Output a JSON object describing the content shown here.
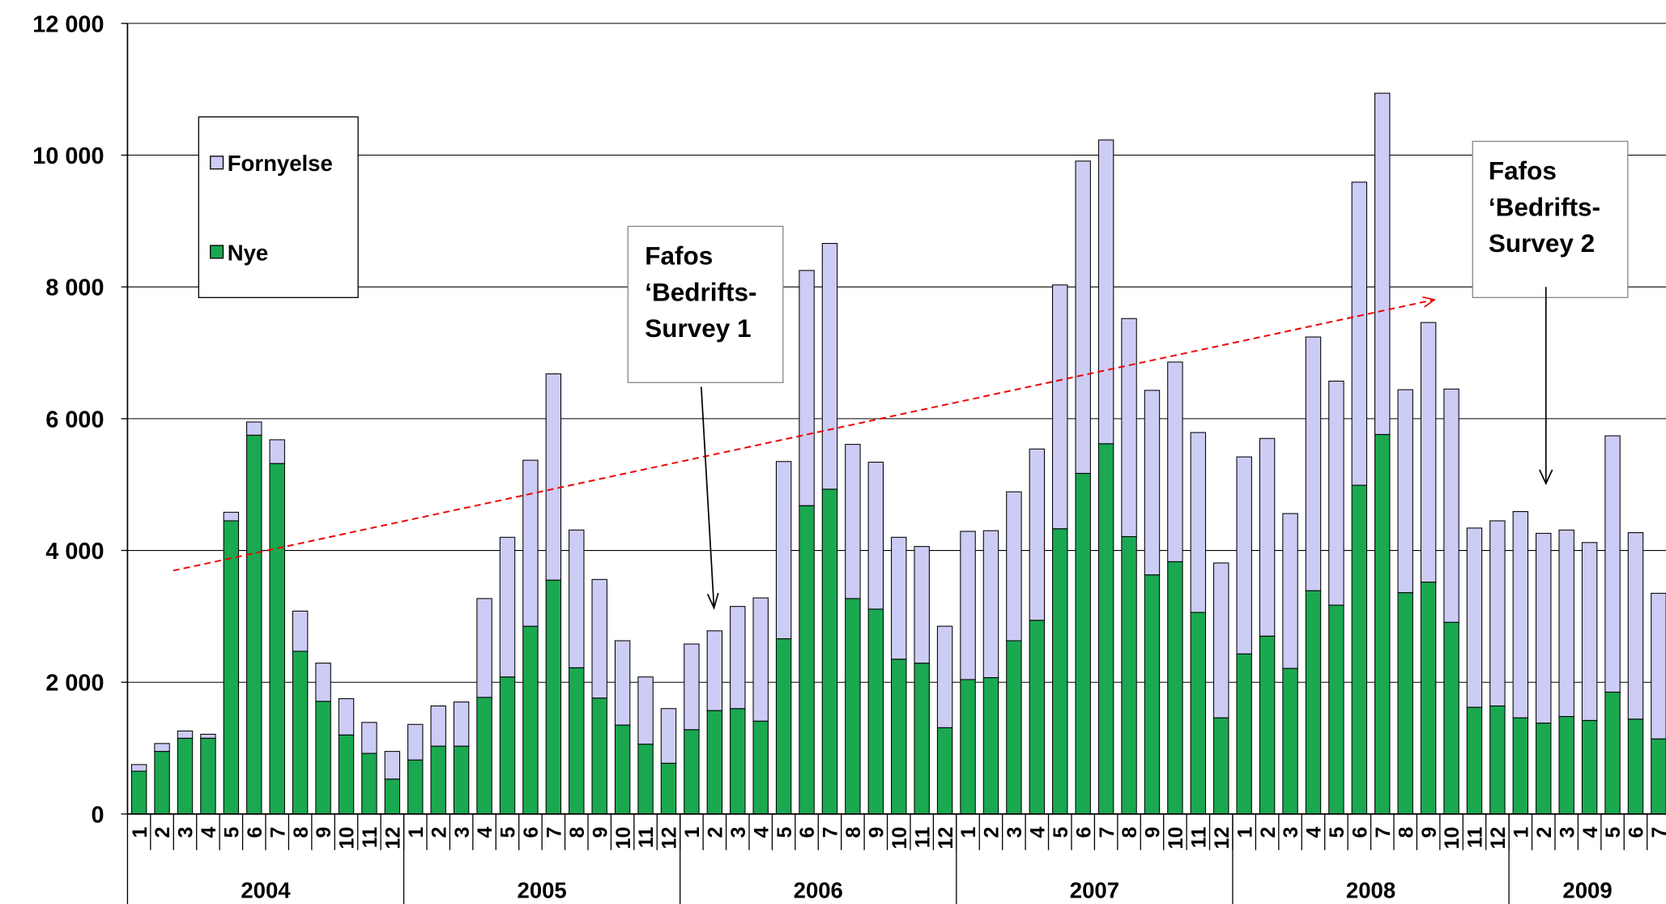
{
  "chart_data": {
    "type": "stacked_bar",
    "categories": [
      "1",
      "2",
      "3",
      "4",
      "5",
      "6",
      "7",
      "8",
      "9",
      "10",
      "11",
      "12",
      "1",
      "2",
      "3",
      "4",
      "5",
      "6",
      "7",
      "8",
      "9",
      "10",
      "11",
      "12",
      "1",
      "2",
      "3",
      "4",
      "5",
      "6",
      "7",
      "8",
      "9",
      "10",
      "11",
      "12",
      "1",
      "2",
      "3",
      "4",
      "5",
      "6",
      "7",
      "8",
      "9",
      "10",
      "11",
      "12",
      "1",
      "2",
      "3",
      "4",
      "5",
      "6",
      "7",
      "8",
      "9",
      "10",
      "11",
      "12",
      "1",
      "2",
      "3",
      "4",
      "5",
      "6",
      "7"
    ],
    "groups": [
      "2004",
      "2005",
      "2006",
      "2007",
      "2008",
      "2009"
    ],
    "series": [
      {
        "name": "Nye",
        "color": "#1aa851",
        "values": [
          650,
          950,
          1150,
          1150,
          4450,
          5750,
          5320,
          2470,
          1710,
          1200,
          920,
          530,
          820,
          1030,
          1030,
          1770,
          2080,
          2850,
          3550,
          2220,
          1760,
          1350,
          1060,
          770,
          1280,
          1570,
          1600,
          1410,
          2660,
          4680,
          4930,
          3270,
          3110,
          2350,
          2290,
          1310,
          2040,
          2070,
          2630,
          2940,
          4330,
          5170,
          5620,
          4210,
          3630,
          3830,
          3060,
          1460,
          2430,
          2700,
          2210,
          3390,
          3170,
          4990,
          5760,
          3360,
          3520,
          2910,
          1620,
          1640,
          1460,
          1380,
          1480,
          1420,
          1850,
          1440,
          1140
        ]
      },
      {
        "name": "Fornyelse",
        "color": "#ccccf5",
        "values": [
          100,
          120,
          110,
          60,
          130,
          200,
          360,
          610,
          580,
          550,
          470,
          420,
          540,
          610,
          670,
          1500,
          2120,
          2520,
          3130,
          2090,
          1800,
          1280,
          1020,
          830,
          1300,
          1210,
          1550,
          1870,
          2690,
          3570,
          3730,
          2340,
          2230,
          1850,
          1770,
          1540,
          2250,
          2230,
          2260,
          2600,
          3700,
          4740,
          4610,
          3310,
          2800,
          3030,
          2730,
          2350,
          2990,
          3000,
          2350,
          3850,
          3400,
          4600,
          5180,
          3080,
          3940,
          3540,
          2720,
          2810,
          3130,
          2880,
          2830,
          2700,
          3890,
          2830,
          2210
        ]
      }
    ],
    "ylim": [
      0,
      12000
    ],
    "yticks": [
      0,
      {
        "value": 2000,
        "label": "2 000"
      },
      {
        "value": 4000,
        "label": "4 000"
      },
      {
        "value": 6000,
        "label": "6 000"
      },
      {
        "value": 8000,
        "label": "8 000"
      },
      {
        "value": 10000,
        "label": "10 000"
      },
      {
        "value": 12000,
        "label": "12 000"
      }
    ],
    "grid": true,
    "annotations": [
      {
        "lines": [
          "Fafos",
          "‘Bedrifts-",
          "Survey 1"
        ]
      },
      {
        "lines": [
          "Fafos",
          "‘Bedrifts-",
          "Survey 2"
        ]
      }
    ]
  }
}
